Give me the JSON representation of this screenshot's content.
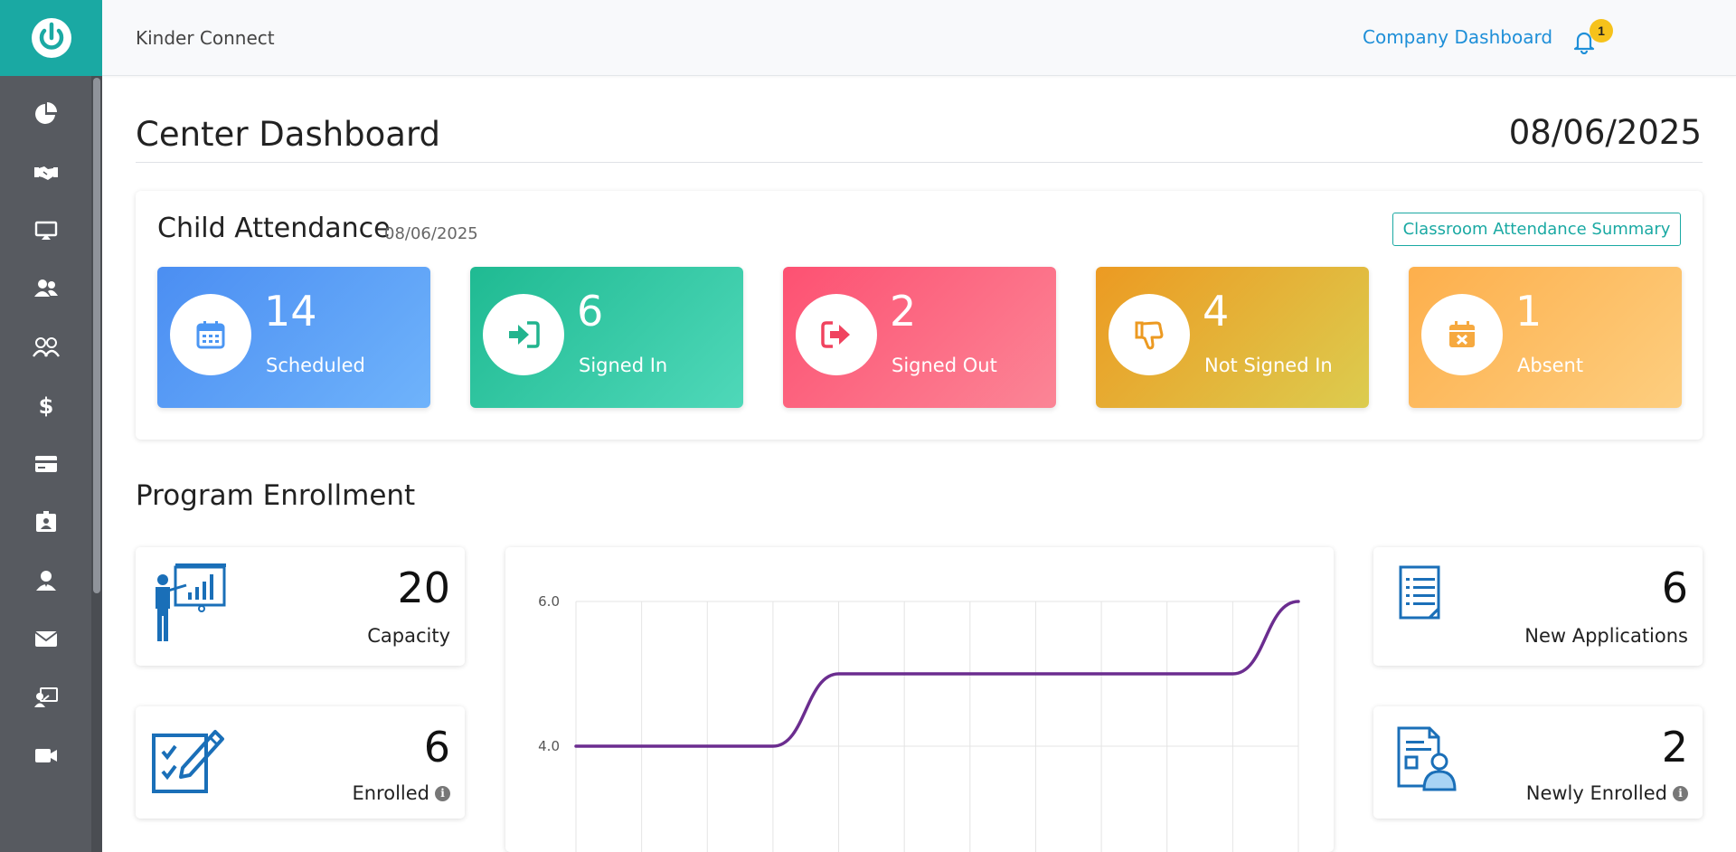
{
  "app": {
    "brand": "Kinder Connect",
    "company_link": "Company Dashboard",
    "notification_count": "1",
    "accent_color": "#1aa9a3"
  },
  "sidebar": {
    "items": [
      {
        "icon": "pie-chart-icon"
      },
      {
        "icon": "handshake-icon"
      },
      {
        "icon": "presentation-icon"
      },
      {
        "icon": "users-icon"
      },
      {
        "icon": "parents-icon"
      },
      {
        "icon": "dollar-icon"
      },
      {
        "icon": "credit-card-icon"
      },
      {
        "icon": "id-badge-icon"
      },
      {
        "icon": "staff-icon"
      },
      {
        "icon": "envelope-icon"
      },
      {
        "icon": "teacher-board-icon"
      },
      {
        "icon": "video-camera-icon"
      }
    ]
  },
  "page": {
    "title": "Center Dashboard",
    "date": "08/06/2025"
  },
  "attendance": {
    "title": "Child Attendance",
    "date": "08/06/2025",
    "summary_button": "Classroom Attendance Summary",
    "tiles": [
      {
        "value": "14",
        "label": "Scheduled",
        "icon": "calendar-icon",
        "color": "#4b9bf4"
      },
      {
        "value": "6",
        "label": "Signed In",
        "icon": "sign-in-icon",
        "color": "#23bf97"
      },
      {
        "value": "2",
        "label": "Signed Out",
        "icon": "sign-out-icon",
        "color": "#fb5b7a"
      },
      {
        "value": "4",
        "label": "Not Signed In",
        "icon": "thumbs-down-icon",
        "color": "#ec9f25"
      },
      {
        "value": "1",
        "label": "Absent",
        "icon": "calendar-x-icon",
        "color": "#fdb454"
      }
    ]
  },
  "enrollment": {
    "title": "Program Enrollment",
    "capacity": {
      "value": "20",
      "label": "Capacity",
      "icon": "presenter-icon"
    },
    "enrolled": {
      "value": "6",
      "label": "Enrolled",
      "icon": "checklist-pen-icon"
    },
    "new_applications": {
      "value": "6",
      "label": "New Applications",
      "icon": "document-icon"
    },
    "newly_enrolled": {
      "value": "2",
      "label": "Newly Enrolled",
      "icon": "document-user-icon"
    }
  },
  "chart_data": {
    "type": "line",
    "title": "",
    "xlabel": "",
    "ylabel": "",
    "y_ticks": [
      "6.0",
      "4.0"
    ],
    "ylim": [
      3.0,
      6.0
    ],
    "x": [
      0,
      1,
      2,
      3,
      4,
      5,
      6,
      7,
      8,
      9,
      10,
      11
    ],
    "series": [
      {
        "values": [
          4,
          4,
          4,
          4,
          5,
          5,
          5,
          5,
          5,
          5,
          5,
          6
        ],
        "color": "#6b2d8f"
      }
    ],
    "grid": true
  }
}
